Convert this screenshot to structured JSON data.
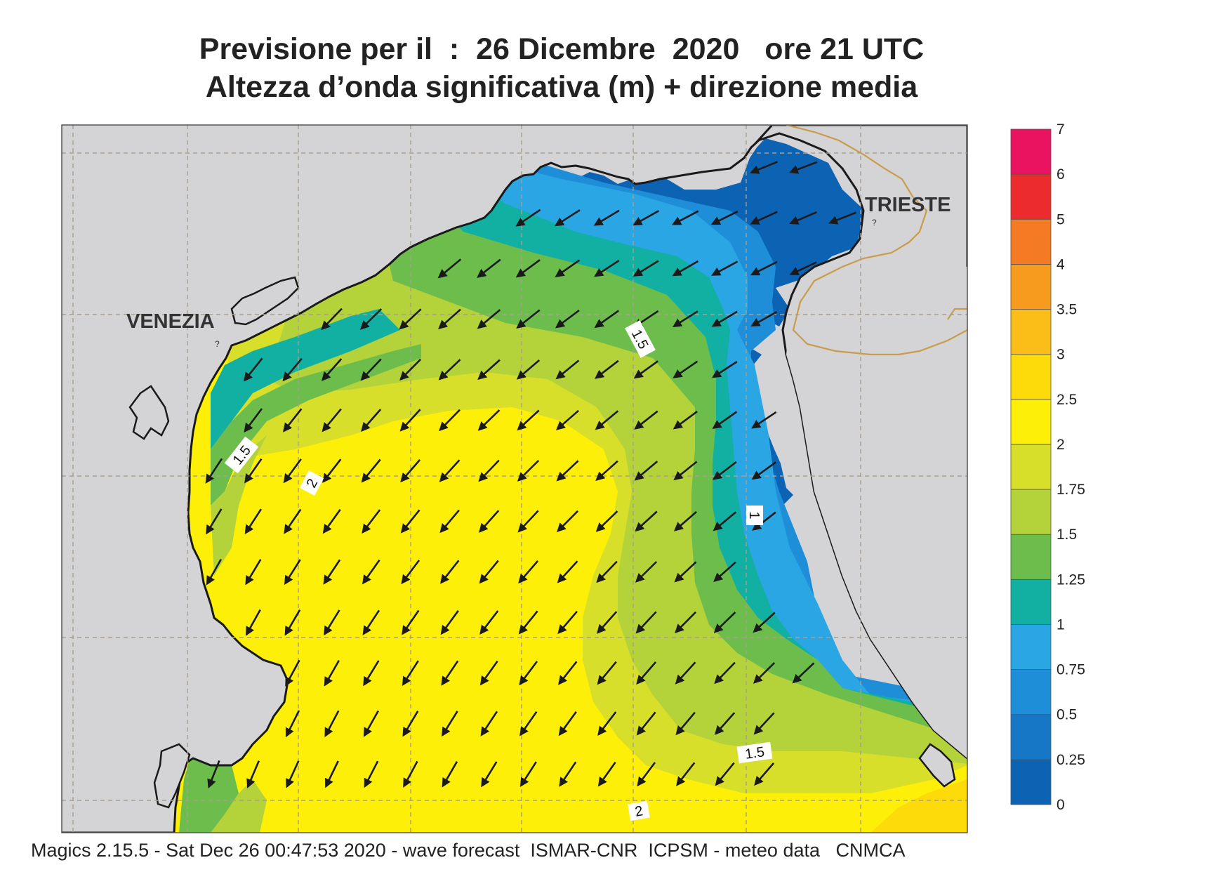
{
  "header": {
    "line1": "Previsione per il  :  26 Dicembre  2020   ore 21 UTC",
    "line2": "Altezza d’onda significativa (m) + direzione media"
  },
  "footer": "Magics 2.15.5 - Sat Dec 26 00:47:53 2020 - wave forecast  ISMAR-CNR  ICPSM - meteo data   CNMCA",
  "map": {
    "cities": [
      "VENEZIA",
      "TRIESTE"
    ],
    "contour_labels": [
      "1.5",
      "1.5",
      "2",
      "1",
      "1.5",
      "2"
    ],
    "arrow_direction": "toward-southwest",
    "colors": {
      "land": "#d4d4d6",
      "coastline": "#1a1a1a",
      "border": "#c89c4a",
      "grid": "#a89f8e"
    }
  },
  "colorbar": {
    "unit": "m",
    "levels": [
      "0",
      "0.25",
      "0.5",
      "0.75",
      "1",
      "1.25",
      "1.5",
      "1.75",
      "2",
      "2.5",
      "3",
      "3.5",
      "4",
      "5",
      "6",
      "7"
    ],
    "colors": [
      "#0c63b3",
      "#1677c7",
      "#1f8ed8",
      "#2aa6e4",
      "#12b0a3",
      "#6cbd4c",
      "#b4d23a",
      "#d8df2a",
      "#fdef07",
      "#fddb0a",
      "#fbbe18",
      "#f79b1e",
      "#f47b24",
      "#ec2c2c",
      "#ea135f"
    ]
  }
}
